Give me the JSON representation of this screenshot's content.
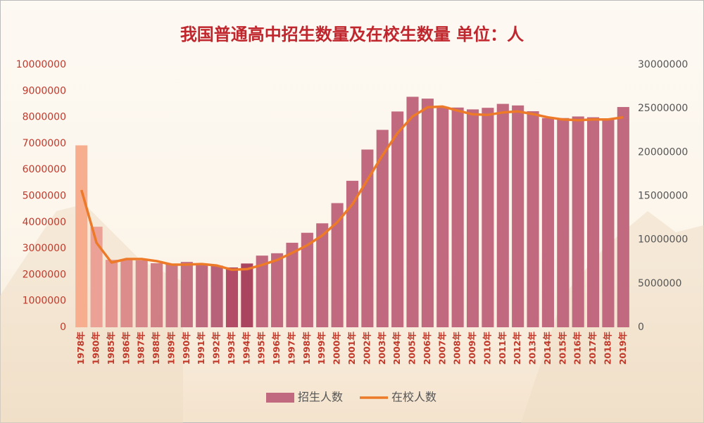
{
  "chart_data": {
    "type": "bar_line",
    "title": "我国普通高中招生数量及在校生数量 单位：人",
    "categories": [
      "1978年",
      "1980年",
      "1985年",
      "1986年",
      "1987年",
      "1988年",
      "1989年",
      "1990年",
      "1991年",
      "1992年",
      "1993年",
      "1994年",
      "1995年",
      "1996年",
      "1997年",
      "1998年",
      "1999年",
      "2000年",
      "2001年",
      "2002年",
      "2003年",
      "2004年",
      "2005年",
      "2006年",
      "2007年",
      "2008年",
      "2009年",
      "2010年",
      "2011年",
      "2012年",
      "2013年",
      "2014年",
      "2015年",
      "2016年",
      "2017年",
      "2018年",
      "2019年"
    ],
    "series": [
      {
        "name": "招生人数",
        "type": "bar",
        "axis": "y",
        "color": "#c0697f",
        "bar_colors": [
          "#f6ae8f",
          "#eca196",
          "#e39690",
          "#dc8d8b",
          "#d68689",
          "#d07f85",
          "#ca7883",
          "#c47181",
          "#be6a7e",
          "#b8627a",
          "#b24c67",
          "#aa4560",
          "#c0697f",
          "#c0697f",
          "#c0697f",
          "#c0697f",
          "#c0697f",
          "#c0697f",
          "#c0697f",
          "#c0697f",
          "#c0697f",
          "#c0697f",
          "#c0697f",
          "#c0697f",
          "#c0697f",
          "#c0697f",
          "#c0697f",
          "#c0697f",
          "#c0697f",
          "#c0697f",
          "#c0697f",
          "#c0697f",
          "#c0697f",
          "#c0697f",
          "#c0697f",
          "#c0697f",
          "#c0697f"
        ],
        "values": [
          6930000,
          3830000,
          2570000,
          2600000,
          2550000,
          2440000,
          2420000,
          2490000,
          2430000,
          2350000,
          2280000,
          2430000,
          2730000,
          2820000,
          3220000,
          3600000,
          3960000,
          4730000,
          5580000,
          6770000,
          7520000,
          8220000,
          8780000,
          8710000,
          8400000,
          8370000,
          8300000,
          8360000,
          8510000,
          8450000,
          8230000,
          7970000,
          7970000,
          8030000,
          8000000,
          7930000,
          8390000
        ]
      },
      {
        "name": "在校人数",
        "type": "line",
        "axis": "y2",
        "color": "#ec7a28",
        "values": [
          15680000,
          9650000,
          7400000,
          7800000,
          7800000,
          7560000,
          7160000,
          7170000,
          7230000,
          7050000,
          6570000,
          6640000,
          7130000,
          7690000,
          8500000,
          9380000,
          10500000,
          12010000,
          14050000,
          16840000,
          19650000,
          22200000,
          24090000,
          25140000,
          25220000,
          24760000,
          24340000,
          24270000,
          24550000,
          24670000,
          24360000,
          23990000,
          23740000,
          23670000,
          23750000,
          23750000,
          24000000
        ]
      }
    ],
    "ylim": [
      0,
      10000000
    ],
    "yticks": [
      0,
      1000000,
      2000000,
      3000000,
      4000000,
      5000000,
      6000000,
      7000000,
      8000000,
      9000000,
      10000000
    ],
    "y2lim": [
      0,
      30000000
    ],
    "y2ticks": [
      0,
      5000000,
      10000000,
      15000000,
      20000000,
      25000000,
      30000000
    ],
    "legend": "bottom"
  }
}
